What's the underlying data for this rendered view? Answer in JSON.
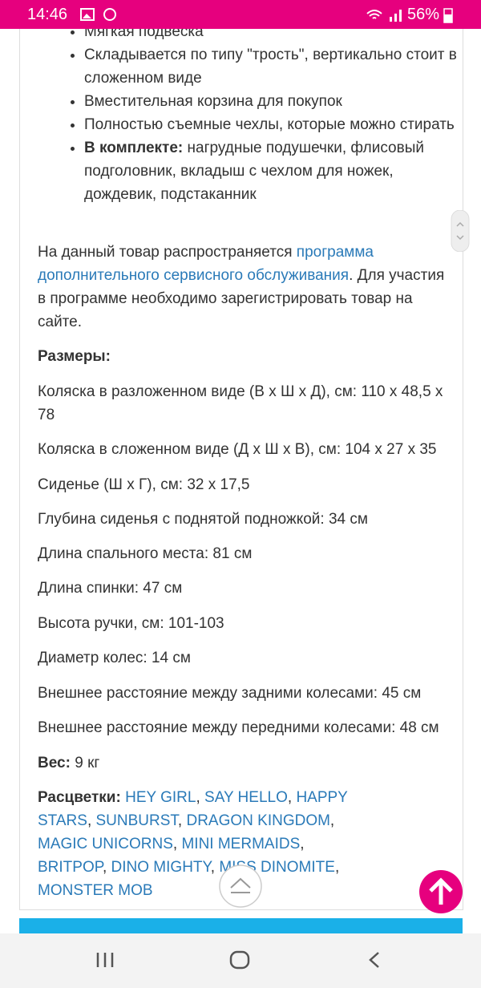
{
  "status_bar": {
    "time": "14:46",
    "battery": "56%"
  },
  "features": [
    "Мягкая подвеска",
    "Складывается по типу \"трость\", вертикально стоит в сложенном виде",
    "Вместительная корзина для покупок",
    "Полностью съемные чехлы, которые можно стирать"
  ],
  "included": {
    "label": "В комплекте:",
    "text": "нагрудные подушечки, флисовый подголовник, вкладыш с чехлом для ножек, дождевик, подстаканник"
  },
  "service": {
    "before": "На данный товар распространяется ",
    "link": "программа дополнительного сервисного обслуживания",
    "after": ". Для участия в программе необходимо зарегистрировать товар на сайте."
  },
  "sizes": {
    "title": "Размеры:",
    "items": [
      "Коляска в разложенном виде (В х Ш х Д), см: 110 х 48,5 х 78",
      "Коляска в сложенном виде (Д х Ш х В), см: 104 х 27 х 35",
      "Сиденье (Ш х Г), см: 32 х 17,5",
      "Глубина сиденья с поднятой подножкой: 34 см",
      "Длина спального места: 81 см",
      "Длина спинки: 47 см",
      "Высота ручки, см: 101-103",
      "Диаметр колес: 14 см",
      "Внешнее расстояние между задними колесами: 45 см",
      "Внешнее расстояние между передними колесами: 48 см"
    ]
  },
  "weight": {
    "label": "Вес:",
    "value": "9 кг"
  },
  "colors": {
    "label": "Расцветки:",
    "separator": ", ",
    "items": [
      "HEY GIRL",
      "SAY HELLO",
      "HAPPY STARS",
      "SUNBURST",
      "DRAGON KINGDOM",
      "MAGIC UNICORNS",
      "MINI MERMAIDS",
      "BRITPOP",
      "DINO MIGHTY",
      "MISS DINOMITE",
      "MONSTER MOB"
    ]
  }
}
